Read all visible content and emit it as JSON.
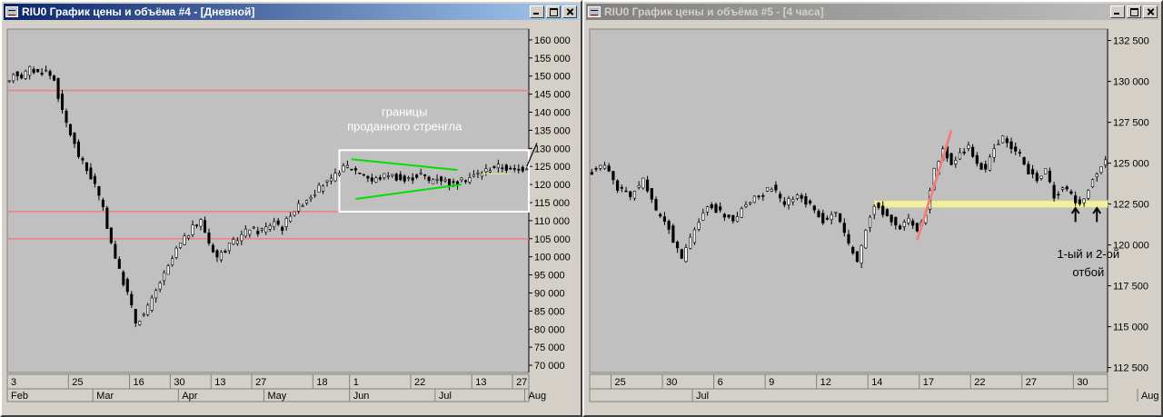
{
  "windows": [
    {
      "title": "RIU0 График цены и объёма #4 - [Дневной]",
      "active": true,
      "chart_data": {
        "type": "candlestick",
        "y_ticks": [
          "160 000",
          "155 000",
          "150 000",
          "145 000",
          "140 000",
          "135 000",
          "130 000",
          "125 000",
          "120 000",
          "115 000",
          "110 000",
          "105 000",
          "100 000",
          "95 000",
          "90 000",
          "85 000",
          "80 000",
          "75 000",
          "70 000"
        ],
        "ylim": [
          68000,
          163000
        ],
        "day_labels": [
          {
            "label": "3",
            "i": 0
          },
          {
            "label": "25",
            "i": 15
          },
          {
            "label": "16",
            "i": 30
          },
          {
            "label": "30",
            "i": 40
          },
          {
            "label": "13",
            "i": 50
          },
          {
            "label": "27",
            "i": 60
          },
          {
            "label": "18",
            "i": 75
          },
          {
            "label": "1",
            "i": 84
          },
          {
            "label": "22",
            "i": 99
          },
          {
            "label": "13",
            "i": 114
          },
          {
            "label": "27",
            "i": 124
          }
        ],
        "month_labels": [
          {
            "label": "Feb",
            "i": 0
          },
          {
            "label": "Mar",
            "i": 21
          },
          {
            "label": "Apr",
            "i": 42
          },
          {
            "label": "May",
            "i": 63
          },
          {
            "label": "Jun",
            "i": 84
          },
          {
            "label": "Jul",
            "i": 105
          },
          {
            "label": "Aug",
            "i": 127
          }
        ],
        "hlines": [
          146000,
          112500,
          105000
        ],
        "annotation": "границы проданного стренгла",
        "annotation_lines": [
          "границы",
          "проданного стренгла"
        ],
        "anchors": [
          [
            0,
            148000
          ],
          [
            1,
            151000
          ],
          [
            3,
            150000
          ],
          [
            5,
            152000
          ],
          [
            7,
            151000
          ],
          [
            9,
            151500
          ],
          [
            11,
            149000
          ],
          [
            13,
            140000
          ],
          [
            15,
            134000
          ],
          [
            17,
            128000
          ],
          [
            19,
            124000
          ],
          [
            21,
            120000
          ],
          [
            23,
            113000
          ],
          [
            25,
            104000
          ],
          [
            27,
            96000
          ],
          [
            29,
            90000
          ],
          [
            31,
            82000
          ],
          [
            33,
            84000
          ],
          [
            35,
            88000
          ],
          [
            37,
            93000
          ],
          [
            39,
            97000
          ],
          [
            41,
            102000
          ],
          [
            43,
            105000
          ],
          [
            45,
            108000
          ],
          [
            47,
            110000
          ],
          [
            49,
            104000
          ],
          [
            51,
            100000
          ],
          [
            53,
            102000
          ],
          [
            55,
            104000
          ],
          [
            57,
            106000
          ],
          [
            59,
            108000
          ],
          [
            61,
            107000
          ],
          [
            63,
            108000
          ],
          [
            65,
            110000
          ],
          [
            67,
            108000
          ],
          [
            69,
            112000
          ],
          [
            71,
            114000
          ],
          [
            73,
            116000
          ],
          [
            75,
            118000
          ],
          [
            77,
            120000
          ],
          [
            79,
            121000
          ],
          [
            81,
            124000
          ],
          [
            83,
            125000
          ],
          [
            85,
            124000
          ],
          [
            87,
            123000
          ],
          [
            89,
            121000
          ],
          [
            91,
            122000
          ],
          [
            93,
            123000
          ],
          [
            95,
            122000
          ],
          [
            97,
            121000
          ],
          [
            99,
            122000
          ],
          [
            101,
            123000
          ],
          [
            103,
            121000
          ],
          [
            105,
            122000
          ],
          [
            107,
            121000
          ],
          [
            109,
            120000
          ],
          [
            111,
            121000
          ],
          [
            113,
            122000
          ],
          [
            115,
            123000
          ],
          [
            117,
            124000
          ],
          [
            119,
            125000
          ],
          [
            121,
            125000
          ],
          [
            123,
            124000
          ],
          [
            125,
            124000
          ],
          [
            127,
            125000
          ]
        ],
        "n": 128
      }
    },
    {
      "title": "RIU0 График цены и объёма #5 - [4 часа]",
      "active": false,
      "chart_data": {
        "type": "candlestick",
        "y_ticks": [
          "132 500",
          "130 000",
          "127 500",
          "125 000",
          "122 500",
          "120 000",
          "117 500",
          "115 000",
          "112 500"
        ],
        "ylim": [
          112200,
          133200
        ],
        "day_labels": [
          {
            "label": "25",
            "i": 5
          },
          {
            "label": "30",
            "i": 17
          },
          {
            "label": "6",
            "i": 29
          },
          {
            "label": "9",
            "i": 41
          },
          {
            "label": "12",
            "i": 53
          },
          {
            "label": "14",
            "i": 65
          },
          {
            "label": "17",
            "i": 77
          },
          {
            "label": "22",
            "i": 89
          },
          {
            "label": "27",
            "i": 101
          },
          {
            "label": "30",
            "i": 113
          }
        ],
        "month_labels": [
          {
            "label": "Jul",
            "i": 24
          },
          {
            "label": "Aug",
            "i": 128
          }
        ],
        "annotation": "1-ый и 2-ой отбой",
        "annotation_lines": [
          "1-ый и 2-ой",
          "отбой"
        ],
        "anchors": [
          [
            0,
            124500
          ],
          [
            3,
            125000
          ],
          [
            6,
            123500
          ],
          [
            9,
            123000
          ],
          [
            12,
            124000
          ],
          [
            15,
            122000
          ],
          [
            18,
            121000
          ],
          [
            21,
            119000
          ],
          [
            24,
            121000
          ],
          [
            27,
            122500
          ],
          [
            30,
            122000
          ],
          [
            33,
            121500
          ],
          [
            36,
            122500
          ],
          [
            39,
            123000
          ],
          [
            42,
            123500
          ],
          [
            45,
            122500
          ],
          [
            48,
            123000
          ],
          [
            51,
            122500
          ],
          [
            54,
            121500
          ],
          [
            57,
            122000
          ],
          [
            60,
            120000
          ],
          [
            62,
            119000
          ],
          [
            64,
            121000
          ],
          [
            66,
            122500
          ],
          [
            68,
            122000
          ],
          [
            70,
            121500
          ],
          [
            72,
            121000
          ],
          [
            74,
            121500
          ],
          [
            76,
            121000
          ],
          [
            78,
            122000
          ],
          [
            80,
            124500
          ],
          [
            82,
            126000
          ],
          [
            84,
            125000
          ],
          [
            86,
            125500
          ],
          [
            88,
            126000
          ],
          [
            90,
            125000
          ],
          [
            92,
            124500
          ],
          [
            94,
            126000
          ],
          [
            96,
            126500
          ],
          [
            98,
            126000
          ],
          [
            100,
            125500
          ],
          [
            102,
            124500
          ],
          [
            104,
            124000
          ],
          [
            106,
            124500
          ],
          [
            108,
            123000
          ],
          [
            110,
            123500
          ],
          [
            112,
            123000
          ],
          [
            114,
            122500
          ],
          [
            116,
            123500
          ],
          [
            118,
            124500
          ],
          [
            120,
            125200
          ]
        ],
        "n": 121
      }
    }
  ]
}
